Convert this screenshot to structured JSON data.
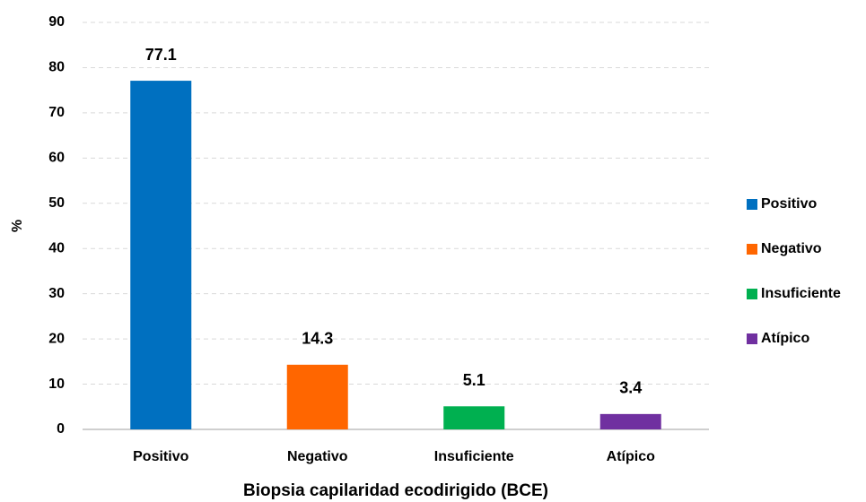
{
  "chart_data": {
    "type": "bar",
    "x_label": "Biopsia capilaridad ecodirigido (BCE)",
    "y_label": "%",
    "categories": [
      "Positivo",
      "Negativo",
      "Insuficiente",
      "Atípico"
    ],
    "values": [
      77.1,
      14.3,
      5.1,
      3.4
    ],
    "colors": [
      "#0070c0",
      "#ff6600",
      "#00b050",
      "#7030a0"
    ],
    "ylim": [
      0,
      90
    ],
    "yticks": [
      0,
      10,
      20,
      30,
      40,
      50,
      60,
      70,
      80,
      90
    ],
    "grid": true,
    "legend": "right"
  }
}
